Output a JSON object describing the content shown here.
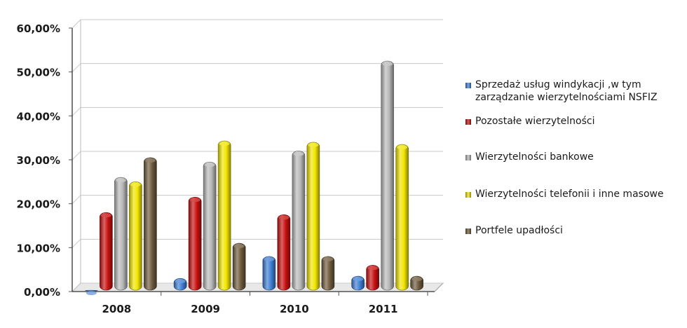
{
  "chart_data": {
    "type": "bar",
    "title": "",
    "xlabel": "",
    "ylabel": "",
    "categories": [
      "2008",
      "2009",
      "2010",
      "2011"
    ],
    "yticks": [
      "0,00%",
      "10,00%",
      "20,00%",
      "30,00%",
      "40,00%",
      "50,00%",
      "60,00%"
    ],
    "ylim": [
      0,
      60
    ],
    "grid": true,
    "legend_position": "right",
    "series": [
      {
        "name": "Sprzedaż usług windykacji ,w tym\nzarządzanie  wierzytelnościami NSFIZ",
        "color": "#3f7fd4",
        "values": [
          0.3,
          3.0,
          8.0,
          3.5
        ]
      },
      {
        "name": "Pozostałe wierzytelności",
        "color": "#c81010",
        "values": [
          18.0,
          21.5,
          17.5,
          6.0
        ]
      },
      {
        "name": "Wierzytelności bankowe",
        "color": "#b8b8b8",
        "values": [
          26.0,
          29.5,
          32.0,
          52.5
        ]
      },
      {
        "name": "Wierzytelności telefonii i inne masowe",
        "color": "#f2e600",
        "values": [
          25.0,
          34.3,
          34.0,
          33.5
        ]
      },
      {
        "name": "Portfele upadłości",
        "color": "#6e5a3c",
        "values": [
          30.5,
          11.0,
          8.0,
          3.5
        ]
      }
    ]
  }
}
